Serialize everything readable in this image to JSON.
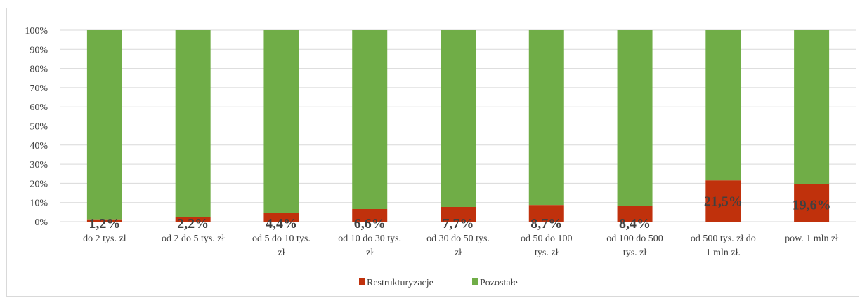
{
  "chart_data": {
    "type": "bar",
    "stacked": true,
    "percent_stacked": true,
    "categories": [
      [
        "do 2 tys. zł"
      ],
      [
        "od 2 do 5 tys. zł"
      ],
      [
        "od 5 do 10 tys.",
        "zł"
      ],
      [
        "od 10 do 30 tys.",
        "zł"
      ],
      [
        "od 30 do 50 tys.",
        "zł"
      ],
      [
        "od 50 do 100",
        "tys. zł"
      ],
      [
        "od 100 do 500",
        "tys. zł"
      ],
      [
        "od 500 tys. zł do",
        "1 mln zł."
      ],
      [
        "pow. 1 mln zł"
      ]
    ],
    "series": [
      {
        "name": "Restrukturyzacje",
        "color": "#c0310c",
        "values": [
          1.2,
          2.2,
          4.4,
          6.6,
          7.7,
          8.7,
          8.4,
          21.5,
          19.6
        ],
        "labels": [
          "1,2%",
          "2,2%",
          "4,4%",
          "6,6%",
          "7,7%",
          "8,7%",
          "8,4%",
          "21,5%",
          "19,6%"
        ]
      },
      {
        "name": "Pozostałe",
        "color": "#70ad47",
        "values": [
          98.8,
          97.8,
          95.6,
          93.4,
          92.3,
          91.3,
          91.6,
          78.5,
          80.4
        ]
      }
    ],
    "yticks": [
      "0%",
      "10%",
      "20%",
      "30%",
      "40%",
      "50%",
      "60%",
      "70%",
      "80%",
      "90%",
      "100%"
    ],
    "ylim": [
      0,
      100
    ],
    "grid": true,
    "legend": "bottom-center",
    "title": "",
    "xlabel": "",
    "ylabel": ""
  }
}
